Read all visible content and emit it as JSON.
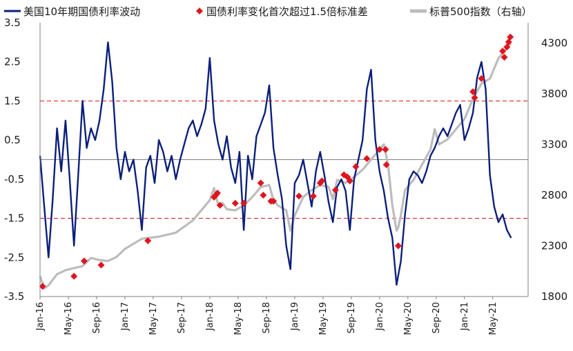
{
  "chart_data": {
    "type": "line",
    "legend": {
      "placement": "top",
      "items": [
        {
          "label": "美国10年期国债利率波动",
          "color": "#0b1f7a",
          "style": "line"
        },
        {
          "label": "国债利率变化首次超过1.5倍标准差",
          "color": "#e0141e",
          "style": "diamond"
        },
        {
          "label": "标普500指数（右轴）",
          "color": "#bcbcbc",
          "style": "line"
        }
      ]
    },
    "x_ticks": [
      "Jan-16",
      "May-16",
      "Sep-16",
      "Jan-17",
      "May-17",
      "Sep-17",
      "Jan-18",
      "May-18",
      "Sep-18",
      "Jan-19",
      "May-19",
      "Sep-19",
      "Jan-20",
      "May-20",
      "Sep-20",
      "Jan-21",
      "May-21"
    ],
    "y_left": {
      "ticks": [
        "3.5",
        "2.5",
        "1.5",
        "0.5",
        "-0.5",
        "-1.5",
        "-2.5",
        "-3.5"
      ],
      "range": [
        -3.5,
        3.5
      ],
      "tick_color": "#1a1a1a"
    },
    "y_right": {
      "ticks": [
        "4300",
        "3800",
        "3300",
        "2800",
        "2300",
        "1800"
      ],
      "range": [
        1800,
        4500
      ]
    },
    "reference_lines": [
      {
        "value": 1.5,
        "axis": "left",
        "color": "#d9262a",
        "style": "dashed"
      },
      {
        "value": -1.5,
        "axis": "left",
        "color": "#d9262a",
        "style": "dashed"
      },
      {
        "value": 0,
        "axis": "left",
        "color": "#7f7f7f",
        "style": "solid"
      }
    ],
    "series": [
      {
        "name": "美国10年期国债利率波动",
        "axis": "left",
        "color": "#0b1f7a",
        "x": [
          2016.0,
          2016.05,
          2016.1,
          2016.15,
          2016.2,
          2016.25,
          2016.3,
          2016.35,
          2016.4,
          2016.45,
          2016.5,
          2016.55,
          2016.6,
          2016.65,
          2016.7,
          2016.75,
          2016.8,
          2016.85,
          2016.9,
          2016.95,
          2017.0,
          2017.05,
          2017.1,
          2017.15,
          2017.2,
          2017.25,
          2017.3,
          2017.35,
          2017.4,
          2017.45,
          2017.5,
          2017.55,
          2017.6,
          2017.65,
          2017.7,
          2017.75,
          2017.8,
          2017.85,
          2017.9,
          2017.95,
          2018.0,
          2018.05,
          2018.1,
          2018.15,
          2018.2,
          2018.25,
          2018.3,
          2018.35,
          2018.4,
          2018.45,
          2018.5,
          2018.55,
          2018.6,
          2018.65,
          2018.7,
          2018.75,
          2018.8,
          2018.85,
          2018.9,
          2018.95,
          2019.0,
          2019.05,
          2019.1,
          2019.15,
          2019.2,
          2019.25,
          2019.3,
          2019.35,
          2019.4,
          2019.45,
          2019.5,
          2019.55,
          2019.6,
          2019.65,
          2019.7,
          2019.75,
          2019.8,
          2019.85,
          2019.9,
          2019.95,
          2020.0,
          2020.05,
          2020.1,
          2020.15,
          2020.2,
          2020.25,
          2020.3,
          2020.35,
          2020.4,
          2020.45,
          2020.5,
          2020.55,
          2020.6,
          2020.65,
          2020.7,
          2020.75,
          2020.8,
          2020.85,
          2020.9,
          2020.95,
          2021.0,
          2021.05,
          2021.1,
          2021.15,
          2021.2,
          2021.25,
          2021.3,
          2021.35,
          2021.4,
          2021.45,
          2021.5,
          2021.55
        ],
        "y": [
          0.1,
          -1.2,
          -2.5,
          -1.0,
          0.8,
          -0.3,
          1.0,
          -0.5,
          -2.2,
          -0.4,
          1.5,
          0.3,
          0.8,
          0.5,
          1.0,
          1.8,
          3.0,
          2.0,
          0.3,
          -0.5,
          0.2,
          -0.3,
          0.0,
          -0.8,
          -1.8,
          -0.2,
          0.1,
          -0.6,
          0.5,
          0.2,
          -0.3,
          0.1,
          -0.5,
          0.0,
          0.4,
          0.8,
          1.0,
          0.6,
          0.9,
          1.3,
          2.6,
          1.0,
          0.4,
          0.0,
          0.6,
          -0.2,
          -0.6,
          0.2,
          -1.8,
          0.1,
          -0.5,
          0.6,
          0.9,
          1.2,
          1.9,
          0.3,
          -0.4,
          -1.0,
          -2.2,
          -2.8,
          -0.6,
          -0.4,
          0.0,
          -0.6,
          -1.2,
          -0.3,
          0.2,
          -0.4,
          -1.1,
          -1.6,
          -0.7,
          -0.5,
          -0.8,
          -1.8,
          -0.5,
          0.0,
          0.5,
          1.8,
          2.3,
          0.5,
          -0.3,
          -0.8,
          -1.5,
          -2.0,
          -3.2,
          -2.6,
          -1.4,
          -0.5,
          -0.3,
          -0.4,
          -0.6,
          -0.3,
          0.1,
          0.3,
          0.6,
          0.8,
          0.6,
          0.9,
          1.2,
          1.4,
          0.5,
          0.8,
          1.2,
          2.1,
          2.5,
          1.8,
          -0.4,
          -1.2,
          -1.6,
          -1.4,
          -1.8,
          -2.0
        ]
      },
      {
        "name": "标普500指数（右轴）",
        "axis": "right",
        "color": "#bcbcbc",
        "x": [
          2016.0,
          2016.05,
          2016.1,
          2016.2,
          2016.3,
          2016.4,
          2016.5,
          2016.6,
          2016.7,
          2016.8,
          2016.9,
          2017.0,
          2017.2,
          2017.4,
          2017.6,
          2017.8,
          2018.0,
          2018.05,
          2018.1,
          2018.15,
          2018.2,
          2018.3,
          2018.4,
          2018.5,
          2018.6,
          2018.7,
          2018.75,
          2018.8,
          2018.9,
          2018.95,
          2019.0,
          2019.1,
          2019.2,
          2019.3,
          2019.4,
          2019.45,
          2019.5,
          2019.6,
          2019.7,
          2019.8,
          2019.9,
          2020.0,
          2020.05,
          2020.1,
          2020.15,
          2020.2,
          2020.22,
          2020.25,
          2020.3,
          2020.4,
          2020.5,
          2020.6,
          2020.65,
          2020.7,
          2020.8,
          2020.9,
          2021.0,
          2021.1,
          2021.2,
          2021.3,
          2021.4,
          2021.5,
          2021.55
        ],
        "y": [
          2000,
          1880,
          1910,
          2020,
          2060,
          2080,
          2100,
          2180,
          2160,
          2150,
          2190,
          2270,
          2370,
          2390,
          2430,
          2550,
          2750,
          2870,
          2700,
          2720,
          2660,
          2650,
          2700,
          2780,
          2880,
          2900,
          2750,
          2700,
          2650,
          2450,
          2600,
          2780,
          2850,
          2900,
          2880,
          2760,
          2950,
          2920,
          2980,
          3050,
          3150,
          3250,
          3300,
          3100,
          2700,
          2450,
          2480,
          2600,
          2850,
          2950,
          3100,
          3250,
          3450,
          3300,
          3350,
          3450,
          3550,
          3750,
          3900,
          3950,
          4150,
          4250,
          4300
        ]
      }
    ],
    "markers": {
      "name": "国债利率变化首次超过1.5倍标准差",
      "color": "#e0141e",
      "points": [
        {
          "x": 2016.03,
          "y": 1900
        },
        {
          "x": 2016.4,
          "y": 2000
        },
        {
          "x": 2016.52,
          "y": 2150
        },
        {
          "x": 2016.72,
          "y": 2110
        },
        {
          "x": 2017.27,
          "y": 2350
        },
        {
          "x": 2018.05,
          "y": 2780
        },
        {
          "x": 2018.07,
          "y": 2800
        },
        {
          "x": 2018.09,
          "y": 2820
        },
        {
          "x": 2018.12,
          "y": 2700
        },
        {
          "x": 2018.3,
          "y": 2720
        },
        {
          "x": 2018.4,
          "y": 2720
        },
        {
          "x": 2018.6,
          "y": 2920
        },
        {
          "x": 2018.63,
          "y": 2800
        },
        {
          "x": 2018.72,
          "y": 2740
        },
        {
          "x": 2018.75,
          "y": 2740
        },
        {
          "x": 2019.05,
          "y": 2790
        },
        {
          "x": 2019.22,
          "y": 2790
        },
        {
          "x": 2019.3,
          "y": 2920
        },
        {
          "x": 2019.32,
          "y": 2940
        },
        {
          "x": 2019.48,
          "y": 2850
        },
        {
          "x": 2019.58,
          "y": 3000
        },
        {
          "x": 2019.62,
          "y": 2980
        },
        {
          "x": 2019.65,
          "y": 2940
        },
        {
          "x": 2019.72,
          "y": 3080
        },
        {
          "x": 2019.85,
          "y": 3160
        },
        {
          "x": 2020.0,
          "y": 3250
        },
        {
          "x": 2020.07,
          "y": 3250
        },
        {
          "x": 2020.08,
          "y": 3100
        },
        {
          "x": 2020.22,
          "y": 2300
        },
        {
          "x": 2021.1,
          "y": 3820
        },
        {
          "x": 2021.12,
          "y": 3760
        },
        {
          "x": 2021.2,
          "y": 3950
        },
        {
          "x": 2021.45,
          "y": 4220
        },
        {
          "x": 2021.47,
          "y": 4160
        },
        {
          "x": 2021.5,
          "y": 4260
        },
        {
          "x": 2021.52,
          "y": 4310
        },
        {
          "x": 2021.54,
          "y": 4360
        }
      ]
    }
  }
}
